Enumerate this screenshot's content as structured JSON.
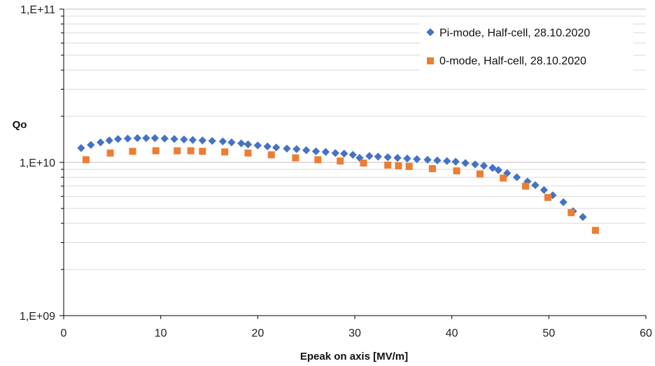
{
  "chart_data": {
    "type": "scatter",
    "xlabel": "Epeak on axis [MV/m]",
    "ylabel": "Qo",
    "xlim": [
      0,
      60
    ],
    "ylim": [
      1000000000.0,
      100000000000.0
    ],
    "yscale": "log",
    "x_ticks": [
      0,
      10,
      20,
      30,
      40,
      50,
      60
    ],
    "x_tick_labels": [
      "0",
      "10",
      "20",
      "30",
      "40",
      "50",
      "60"
    ],
    "y_ticks": [
      1000000000.0,
      10000000000.0,
      100000000000.0
    ],
    "y_tick_labels": [
      "1,E+09",
      "1,E+10",
      "1,E+11"
    ],
    "grid": true,
    "legend_position": "top-right",
    "series": [
      {
        "name": "Pi-mode, Half-cell, 28.10.2020",
        "color": "#4472C4",
        "marker": "diamond",
        "x": [
          1.8,
          2.8,
          3.8,
          4.7,
          5.6,
          6.6,
          7.6,
          8.5,
          9.4,
          10.4,
          11.4,
          12.4,
          13.3,
          14.3,
          15.3,
          16.4,
          17.3,
          18.3,
          19.0,
          20.0,
          21.0,
          21.9,
          23.0,
          24.0,
          25.0,
          26.0,
          27.0,
          28.0,
          28.9,
          29.8,
          30.5,
          31.5,
          32.4,
          33.4,
          34.4,
          35.4,
          36.4,
          37.5,
          38.5,
          39.5,
          40.4,
          41.4,
          42.4,
          43.3,
          44.2,
          44.8,
          45.7,
          46.7,
          47.8,
          48.6,
          49.5,
          50.4,
          51.5,
          52.5,
          53.5
        ],
        "y": [
          12400000000.0,
          13000000000.0,
          13500000000.0,
          13900000000.0,
          14200000000.0,
          14300000000.0,
          14400000000.0,
          14400000000.0,
          14400000000.0,
          14300000000.0,
          14200000000.0,
          14100000000.0,
          14000000000.0,
          13900000000.0,
          13800000000.0,
          13700000000.0,
          13500000000.0,
          13300000000.0,
          13100000000.0,
          12900000000.0,
          12700000000.0,
          12500000000.0,
          12300000000.0,
          12200000000.0,
          12000000000.0,
          11800000000.0,
          11700000000.0,
          11500000000.0,
          11400000000.0,
          11200000000.0,
          10700000000.0,
          11000000000.0,
          10900000000.0,
          10800000000.0,
          10700000000.0,
          10600000000.0,
          10500000000.0,
          10400000000.0,
          10300000000.0,
          10200000000.0,
          10100000000.0,
          9900000000.0,
          9700000000.0,
          9500000000.0,
          9200000000.0,
          8900000000.0,
          8500000000.0,
          8000000000.0,
          7500000000.0,
          7100000000.0,
          6600000000.0,
          6100000000.0,
          5500000000.0,
          4800000000.0,
          4400000000.0
        ]
      },
      {
        "name": "0-mode, Half-cell, 28.10.2020",
        "color": "#ED7D31",
        "marker": "square",
        "x": [
          2.3,
          4.8,
          7.1,
          9.5,
          11.7,
          13.1,
          14.3,
          16.6,
          19.0,
          21.4,
          23.9,
          26.2,
          28.5,
          30.9,
          33.4,
          34.5,
          35.6,
          38.0,
          40.5,
          42.9,
          45.3,
          47.6,
          49.9,
          52.3,
          54.8
        ],
        "y": [
          10400000000.0,
          11500000000.0,
          11800000000.0,
          11900000000.0,
          11900000000.0,
          11900000000.0,
          11800000000.0,
          11700000000.0,
          11500000000.0,
          11200000000.0,
          10700000000.0,
          10400000000.0,
          10200000000.0,
          9900000000.0,
          9600000000.0,
          9500000000.0,
          9400000000.0,
          9100000000.0,
          8800000000.0,
          8400000000.0,
          7900000000.0,
          7000000000.0,
          5900000000.0,
          4700000000.0,
          3600000000.0
        ]
      }
    ]
  }
}
